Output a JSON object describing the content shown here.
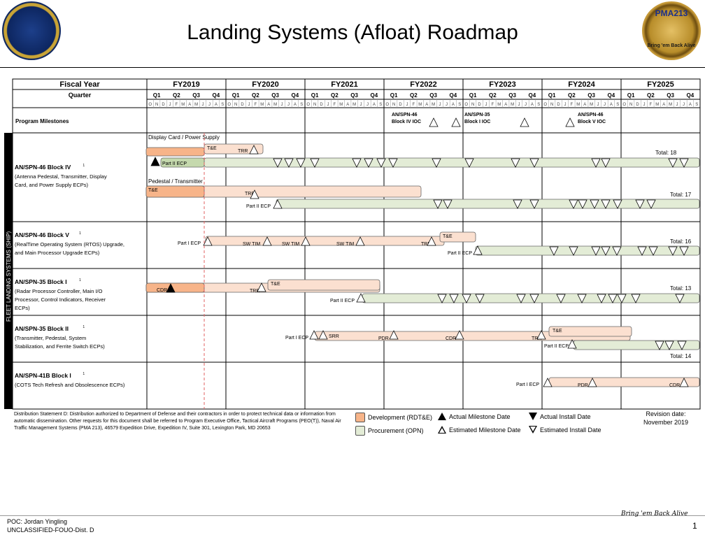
{
  "title": "Landing Systems (Afloat) Roadmap",
  "logos": {
    "left_text": "",
    "right_text": "PMA213",
    "right_motto": "Bring 'em Back Alive"
  },
  "table": {
    "fiscal_year_label": "Fiscal Year",
    "quarter_label": "Quarter",
    "fiscal_years": [
      "FY2019",
      "FY2020",
      "FY2021",
      "FY2022",
      "FY2023",
      "FY2024",
      "FY2025"
    ],
    "quarters": [
      "Q1",
      "Q2",
      "Q3",
      "Q4"
    ],
    "months": [
      "O",
      "N",
      "D",
      "J",
      "F",
      "M",
      "A",
      "M",
      "J",
      "J",
      "A",
      "S"
    ],
    "milestones_label": "Program Milestones",
    "side_label": "FLEET LANDING SYSTEMS (SHIP)"
  },
  "program_milestones": [
    {
      "label": "AN/SPN-46\nBlock IV IOC",
      "fy": "FY2022"
    },
    {
      "label": "AN/SPN-35\nBlock I IOC",
      "fy": "FY2023"
    },
    {
      "label": "AN/SPN-46\nBlock V IOC",
      "fy": "FY2024"
    }
  ],
  "programs": [
    {
      "name": "AN/SPN-46 Block IV",
      "sup": "1",
      "desc": "(Antenna Pedestal, Transmitter, Display Card, and Power Supply ECPs)"
    },
    {
      "name": "AN/SPN-46 Block V",
      "sup": "1",
      "desc": "(RealTime Operating System (RTOS) Upgrade, and Main Processor Upgrade ECPs)"
    },
    {
      "name": "AN/SPN-35 Block I",
      "sup": "1",
      "desc": "(Radar Processor Controller, Main I/O Processor, Control Indicators, Receiver ECPs)"
    },
    {
      "name": "AN/SPN-35 Block II",
      "sup": "1",
      "desc": "(Transmitter, Pedestal, System Stabilization, and Ferrite Switch ECPs)"
    },
    {
      "name": "AN/SPN-41B Block I",
      "sup": "1",
      "desc": "(COTS Tech Refresh and Obsolescence ECPs)"
    }
  ],
  "labels": {
    "display_card": "Display Card / Power Supply",
    "pedestal": "Pedestal / Transmitter",
    "te": "T&E",
    "trr": "TRR",
    "part2": "Part II ECP",
    "part1": "Part I ECP",
    "swtim": "SW TIM",
    "cdr": "CDR",
    "srr": "SRR",
    "pdr": "PDR"
  },
  "totals": [
    "Total: 18",
    "Total: 17",
    "Total: 16",
    "Total: 13",
    "Total: 14"
  ],
  "legend": {
    "development": "Development (RDT&E)",
    "procurement": "Procurement (OPN)",
    "actual_milestone": "Actual Milestone Date",
    "estimated_milestone": "Estimated Milestone Date",
    "actual_install": "Actual Install Date",
    "estimated_install": "Estimated Install Date"
  },
  "distribution": "Distribution Statement D: Distribution authorized to Department of Defense and their contractors in order to protect technical data or information from automatic dissemination. Other requests for this document shall be referred to Program Executive Office, Tactical Aircraft Programs (PEO(T)), Naval Air Traffic Management Systems (PMA 213), 46579 Expedition Drive, Expedition IV, Suite 301, Lexington Park, MD 20653",
  "revision": "Revision date:\nNovember 2019",
  "footer": {
    "poc": "POC:  Jordan Yingling",
    "classification": "UNCLASSIFIED-FOUO-Dist. D",
    "slogan": "Bring 'em Back Alive",
    "page": "1"
  },
  "colors": {
    "development": "#f7b489",
    "development_light": "#fbe0d0",
    "procurement": "#e3ecd6",
    "procurement_dark": "#c5d9ad"
  }
}
